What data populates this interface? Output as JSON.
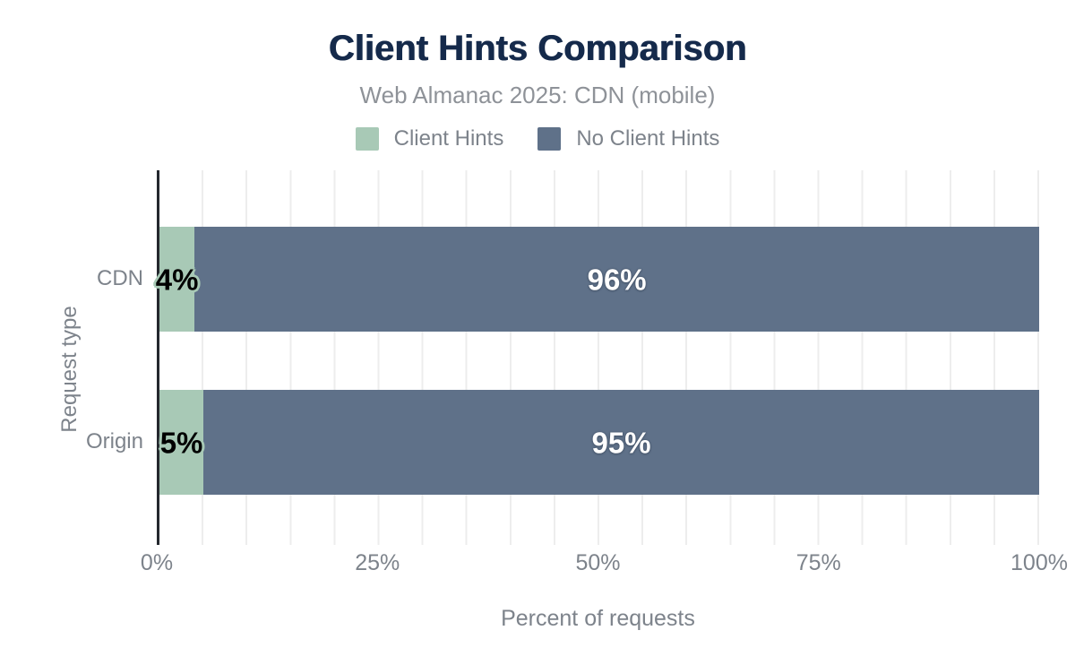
{
  "header": {
    "title": "Client Hints Comparison",
    "subtitle": "Web Almanac 2025: CDN (mobile)"
  },
  "legend": {
    "items": [
      {
        "label": "Client Hints",
        "color": "#a8c9b6"
      },
      {
        "label": "No Client Hints",
        "color": "#5f7189"
      }
    ]
  },
  "colors": {
    "title": "#152a4b",
    "subtitle": "#8e9298",
    "axis_text": "#7d838b",
    "axis_line": "#24282e",
    "gridline": "#ededed",
    "client_hints": "#a8c9b6",
    "no_client_hints": "#5f7189"
  },
  "chart_data": {
    "type": "bar",
    "orientation": "horizontal",
    "stacked": true,
    "title": "Client Hints Comparison",
    "subtitle": "Web Almanac 2025: CDN (mobile)",
    "xlabel": "Percent of requests",
    "ylabel": "Request type",
    "categories": [
      "CDN",
      "Origin"
    ],
    "series": [
      {
        "name": "Client Hints",
        "color": "#a8c9b6",
        "values": [
          4,
          5
        ]
      },
      {
        "name": "No Client Hints",
        "color": "#5f7189",
        "values": [
          96,
          95
        ]
      }
    ],
    "value_labels": [
      [
        "4%",
        "96%"
      ],
      [
        "5%",
        "95%"
      ]
    ],
    "xlim": [
      0,
      100
    ],
    "xticks": [
      "0%",
      "25%",
      "50%",
      "75%",
      "100%"
    ],
    "grid": "vertical minor gridlines every 5%",
    "legend_position": "top"
  },
  "bars": [
    {
      "category": "CDN",
      "client_hints_label": "4%",
      "no_client_hints_label": "96%"
    },
    {
      "category": "Origin",
      "client_hints_label": "5%",
      "no_client_hints_label": "95%"
    }
  ]
}
